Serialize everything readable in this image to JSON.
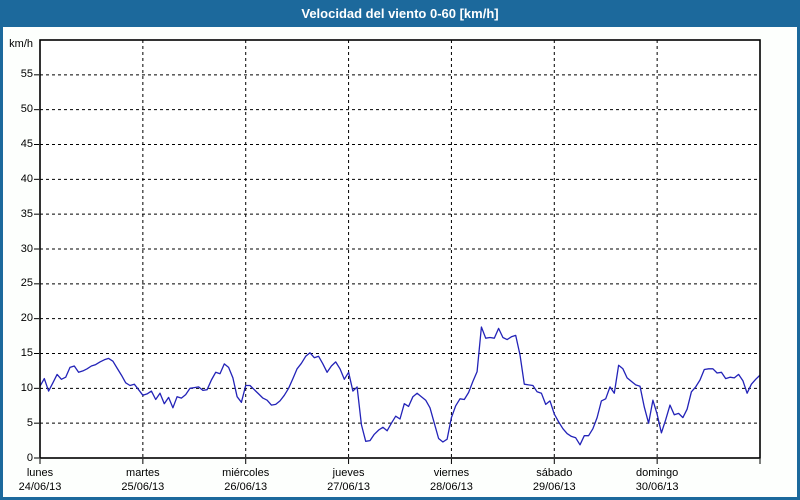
{
  "header": {
    "title": "Velocidad del viento 0-60 [km/h]"
  },
  "chart_data": {
    "type": "line",
    "title": "Velocidad del viento 0-60 [km/h]",
    "xlabel": "",
    "ylabel": "km/h",
    "ylim": [
      0,
      60
    ],
    "yticks": [
      0,
      5,
      10,
      15,
      20,
      25,
      30,
      35,
      40,
      45,
      50,
      55
    ],
    "grid": true,
    "grid_style": "dashed",
    "legend": "none",
    "days": [
      {
        "name": "lunes",
        "date": "24/06/13"
      },
      {
        "name": "martes",
        "date": "25/06/13"
      },
      {
        "name": "miércoles",
        "date": "26/06/13"
      },
      {
        "name": "jueves",
        "date": "27/06/13"
      },
      {
        "name": "viernes",
        "date": "28/06/13"
      },
      {
        "name": "sábado",
        "date": "29/06/13"
      },
      {
        "name": "domingo",
        "date": "30/06/13"
      }
    ],
    "samples_per_day": 24,
    "series": [
      {
        "name": "Velocidad del viento",
        "color": "#2323b8",
        "values": [
          10.3,
          11.4,
          9.6,
          10.8,
          12.0,
          11.3,
          11.6,
          13.0,
          13.2,
          12.3,
          12.5,
          12.8,
          13.2,
          13.4,
          13.8,
          14.1,
          14.3,
          13.9,
          12.9,
          11.9,
          10.8,
          10.4,
          10.6,
          9.8,
          9.0,
          9.2,
          9.6,
          8.4,
          9.3,
          7.8,
          8.7,
          7.2,
          8.8,
          8.6,
          9.1,
          10.0,
          10.1,
          10.2,
          9.7,
          9.8,
          11.2,
          12.3,
          12.1,
          13.5,
          13.0,
          11.5,
          8.8,
          8.0,
          10.4,
          10.4,
          9.8,
          9.2,
          8.6,
          8.3,
          7.6,
          7.7,
          8.2,
          9.0,
          10.0,
          11.4,
          12.8,
          13.6,
          14.6,
          15.1,
          14.4,
          14.6,
          13.5,
          12.3,
          13.2,
          13.8,
          12.8,
          11.3,
          12.3,
          9.6,
          10.2,
          4.8,
          2.4,
          2.5,
          3.4,
          4.0,
          4.4,
          3.9,
          5.0,
          6.0,
          5.6,
          7.8,
          7.4,
          8.8,
          9.3,
          8.8,
          8.3,
          7.2,
          5.0,
          2.8,
          2.3,
          2.7,
          5.8,
          7.5,
          8.5,
          8.4,
          9.4,
          11.0,
          12.4,
          18.8,
          17.2,
          17.3,
          17.2,
          18.6,
          17.3,
          17.0,
          17.4,
          17.6,
          14.8,
          10.6,
          10.5,
          10.4,
          9.5,
          9.3,
          7.7,
          8.2,
          6.3,
          5.2,
          4.2,
          3.5,
          3.1,
          2.9,
          1.9,
          3.2,
          3.2,
          4.2,
          5.8,
          8.2,
          8.5,
          10.2,
          9.3,
          13.3,
          12.8,
          11.5,
          11.0,
          10.5,
          10.3,
          7.3,
          5.0,
          8.3,
          6.3,
          3.6,
          5.5,
          7.6,
          6.2,
          6.4,
          5.8,
          7.0,
          9.5,
          10.2,
          11.2,
          12.7,
          12.8,
          12.8,
          12.2,
          12.3,
          11.4,
          11.6,
          11.5,
          12.0,
          11.1,
          9.3,
          10.6,
          11.3,
          11.9
        ]
      }
    ]
  },
  "colors": {
    "header_bg": "#1c699c",
    "header_text": "#ffffff",
    "frame": "#1c699c",
    "page_bg": "#fdfffd",
    "plot_bg": "#ffffff",
    "plot_border": "#000000",
    "grid": "#000000",
    "line": "#2323b8",
    "text": "#000000"
  }
}
